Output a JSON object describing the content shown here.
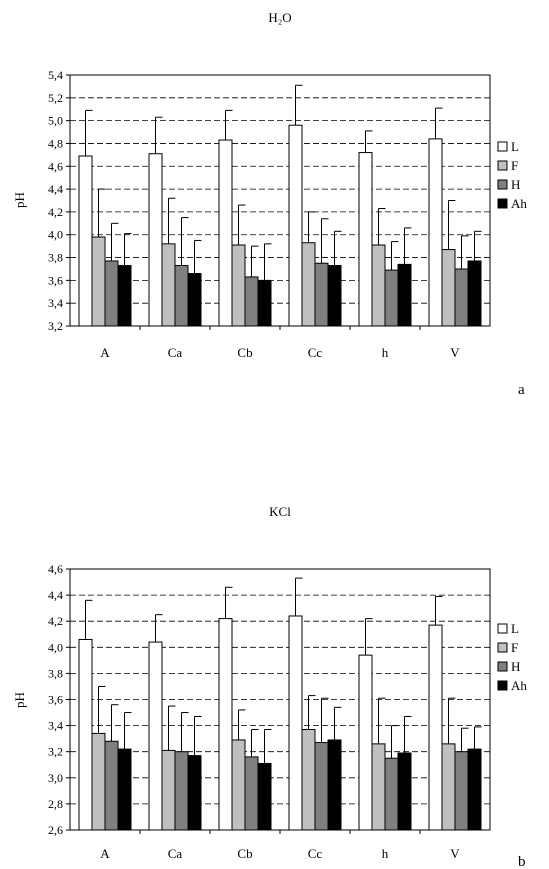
{
  "chart_data": [
    {
      "type": "bar",
      "title": "H₂O",
      "ylabel": "pH",
      "panel_label": "a",
      "ylim": [
        3.2,
        5.4
      ],
      "yticks": [
        "3,2",
        "3,4",
        "3,6",
        "3,8",
        "4,0",
        "4,2",
        "4,4",
        "4,6",
        "4,8",
        "5,0",
        "5,2",
        "5,4"
      ],
      "ytick_values": [
        3.2,
        3.4,
        3.6,
        3.8,
        4.0,
        4.2,
        4.4,
        4.6,
        4.8,
        5.0,
        5.2,
        5.4
      ],
      "grid": "dashed horizontal",
      "legend_position": "right",
      "categories": [
        "A",
        "Ca",
        "Cb",
        "Cc",
        "h",
        "V"
      ],
      "series": [
        {
          "name": "L",
          "color": "#ffffff",
          "values": [
            4.69,
            4.71,
            4.83,
            4.96,
            4.72,
            4.84
          ],
          "errors": [
            0.4,
            0.32,
            0.26,
            0.35,
            0.19,
            0.27
          ]
        },
        {
          "name": "F",
          "color": "#c0c0c0",
          "values": [
            3.98,
            3.92,
            3.91,
            3.93,
            3.91,
            3.87
          ],
          "errors": [
            0.42,
            0.4,
            0.35,
            0.27,
            0.32,
            0.43
          ]
        },
        {
          "name": "H",
          "color": "#808080",
          "values": [
            3.77,
            3.73,
            3.63,
            3.75,
            3.69,
            3.7
          ],
          "errors": [
            0.33,
            0.42,
            0.27,
            0.39,
            0.25,
            0.29
          ]
        },
        {
          "name": "Ah",
          "color": "#000000",
          "values": [
            3.73,
            3.66,
            3.6,
            3.73,
            3.74,
            3.77
          ],
          "errors": [
            0.28,
            0.29,
            0.32,
            0.3,
            0.32,
            0.26
          ]
        }
      ]
    },
    {
      "type": "bar",
      "title": "KCl",
      "ylabel": "pH",
      "panel_label": "b",
      "ylim": [
        2.6,
        4.6
      ],
      "yticks": [
        "2,6",
        "2,8",
        "3,0",
        "3,2",
        "3,4",
        "3,6",
        "3,8",
        "4,0",
        "4,2",
        "4,4",
        "4,6"
      ],
      "ytick_values": [
        2.6,
        2.8,
        3.0,
        3.2,
        3.4,
        3.6,
        3.8,
        4.0,
        4.2,
        4.4,
        4.6
      ],
      "grid": "dashed horizontal",
      "legend_position": "right",
      "categories": [
        "A",
        "Ca",
        "Cb",
        "Cc",
        "h",
        "V"
      ],
      "series": [
        {
          "name": "L",
          "color": "#ffffff",
          "values": [
            4.06,
            4.04,
            4.22,
            4.24,
            3.94,
            4.17
          ],
          "errors": [
            0.3,
            0.21,
            0.24,
            0.29,
            0.28,
            0.22
          ]
        },
        {
          "name": "F",
          "color": "#c0c0c0",
          "values": [
            3.34,
            3.21,
            3.29,
            3.37,
            3.26,
            3.26
          ],
          "errors": [
            0.36,
            0.34,
            0.23,
            0.26,
            0.35,
            0.35
          ]
        },
        {
          "name": "H",
          "color": "#808080",
          "values": [
            3.28,
            3.2,
            3.16,
            3.27,
            3.15,
            3.2
          ],
          "errors": [
            0.28,
            0.3,
            0.21,
            0.34,
            0.25,
            0.18
          ]
        },
        {
          "name": "Ah",
          "color": "#000000",
          "values": [
            3.22,
            3.17,
            3.11,
            3.29,
            3.19,
            3.22
          ],
          "errors": [
            0.28,
            0.3,
            0.26,
            0.25,
            0.28,
            0.17
          ]
        }
      ]
    }
  ]
}
